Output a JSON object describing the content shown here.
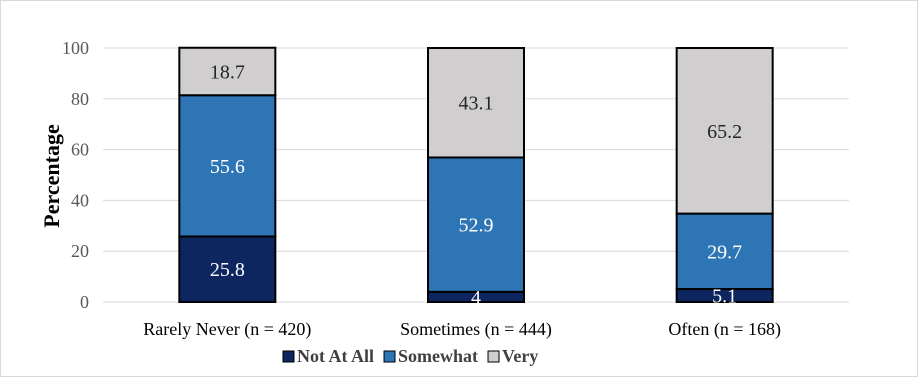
{
  "chart_data": {
    "type": "bar",
    "stacked": true,
    "categories": [
      "Rarely Never (n = 420)",
      "Sometimes (n = 444)",
      "Often (n = 168)"
    ],
    "series": [
      {
        "name": "Not At All",
        "values": [
          25.8,
          4,
          5.1
        ],
        "color": "#0d2660",
        "label_color": "#ffffff"
      },
      {
        "name": "Somewhat",
        "values": [
          55.6,
          52.9,
          29.7
        ],
        "color": "#2e75b6",
        "label_color": "#ffffff"
      },
      {
        "name": "Very",
        "values": [
          18.7,
          43.1,
          65.2
        ],
        "color": "#d0cece",
        "label_color": "#262626"
      }
    ],
    "ylabel": "Percentage",
    "xlabel": "",
    "ylim": [
      0,
      100
    ],
    "yticks": [
      0,
      20,
      40,
      60,
      80,
      100
    ],
    "grid": true,
    "legend_position": "bottom"
  }
}
